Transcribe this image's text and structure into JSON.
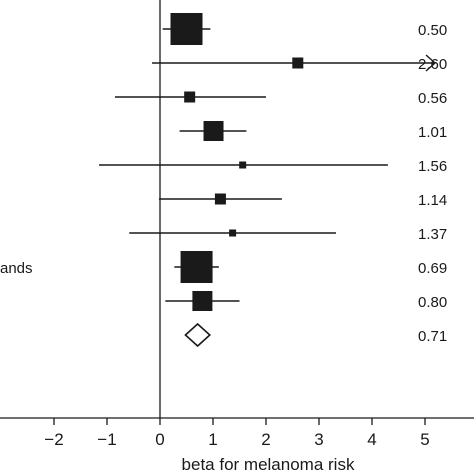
{
  "chart_data": {
    "type": "forest",
    "xlabel": "beta for melanoma risk",
    "xticks": [
      -2,
      -1,
      0,
      1,
      2,
      3,
      4,
      5
    ],
    "xlim": [
      -3.05,
      5.85
    ],
    "reference_line_x": 0,
    "rows": [
      {
        "label": "",
        "beta": 0.5,
        "lower": 0.05,
        "upper": 0.95,
        "weight": "large",
        "display": "0.50"
      },
      {
        "label": "",
        "beta": 2.6,
        "lower": -0.15,
        "upper": 5.0,
        "upper_truncated": true,
        "weight": "small",
        "display": "2.60"
      },
      {
        "label": "",
        "beta": 0.56,
        "lower": -0.85,
        "upper": 2.0,
        "weight": "small",
        "display": "0.56"
      },
      {
        "label": "",
        "beta": 1.01,
        "lower": 0.37,
        "upper": 1.63,
        "weight": "medium",
        "display": "1.01"
      },
      {
        "label": "",
        "beta": 1.56,
        "lower": -1.15,
        "upper": 4.3,
        "weight": "tiny",
        "display": "1.56"
      },
      {
        "label": "",
        "beta": 1.14,
        "lower": -0.02,
        "upper": 2.3,
        "weight": "small",
        "display": "1.14"
      },
      {
        "label": "",
        "beta": 1.37,
        "lower": -0.58,
        "upper": 3.32,
        "weight": "tiny",
        "display": "1.37"
      },
      {
        "label": "ands",
        "beta": 0.69,
        "lower": 0.27,
        "upper": 1.11,
        "weight": "large",
        "display": "0.69"
      },
      {
        "label": "",
        "beta": 0.8,
        "lower": 0.1,
        "upper": 1.5,
        "weight": "medium",
        "display": "0.80"
      }
    ],
    "summary": {
      "beta": 0.71,
      "lower": 0.48,
      "upper": 0.94,
      "display": "0.71"
    }
  }
}
